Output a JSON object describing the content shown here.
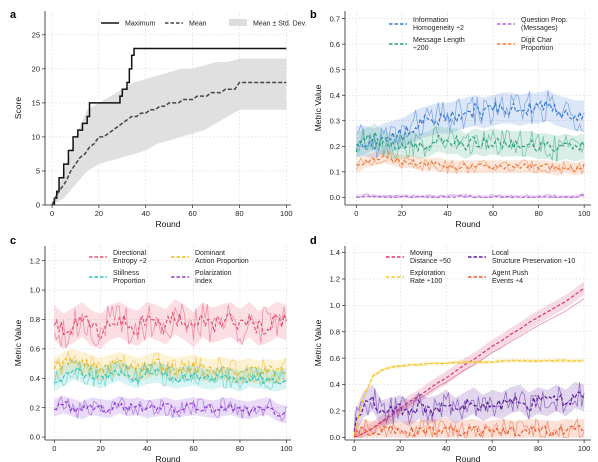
{
  "panels": [
    {
      "id": "a",
      "panel_label": "a",
      "chart_data": {
        "type": "line",
        "xlabel": "Round",
        "ylabel": "Score",
        "xlim": [
          -3,
          102
        ],
        "ylim": [
          0,
          28.5
        ],
        "xticks": [
          0,
          20,
          40,
          60,
          80,
          100
        ],
        "yticks": [
          0,
          5,
          10,
          15,
          20,
          25
        ],
        "grid": true,
        "legend_position": "top",
        "legend_columns": 3,
        "series": [
          {
            "name": "Maximum",
            "style": "solid",
            "color": "#111111",
            "x": [
              0,
              1,
              2,
              3,
              4,
              5,
              6,
              7,
              8,
              9,
              10,
              11,
              12,
              13,
              14,
              15,
              16,
              17,
              18,
              19,
              20,
              21,
              22,
              23,
              24,
              25,
              26,
              27,
              28,
              29,
              30,
              31,
              32,
              33,
              34,
              35,
              40,
              50,
              60,
              70,
              80,
              90,
              100
            ],
            "values": [
              0,
              1,
              2,
              4,
              4,
              6,
              6,
              8,
              8,
              10,
              10,
              11,
              11,
              12,
              12,
              13,
              15,
              15,
              15,
              15,
              15,
              15,
              15,
              15,
              15,
              15,
              15,
              15,
              15,
              16,
              17,
              17,
              18,
              20,
              22,
              23,
              23,
              23,
              23,
              23,
              23,
              23,
              23
            ]
          },
          {
            "name": "Mean",
            "style": "dashed",
            "color": "#444444",
            "x": [
              0,
              2,
              4,
              6,
              8,
              10,
              12,
              14,
              16,
              18,
              20,
              22,
              24,
              26,
              28,
              30,
              32,
              34,
              36,
              38,
              40,
              42,
              44,
              46,
              48,
              50,
              52,
              54,
              56,
              58,
              60,
              62,
              64,
              66,
              68,
              70,
              72,
              74,
              76,
              78,
              80,
              85,
              90,
              95,
              100
            ],
            "values": [
              0,
              1.5,
              2.5,
              3.5,
              5,
              6,
              7,
              7.5,
              8.5,
              9,
              10,
              10,
              10.5,
              11,
              11.5,
              12,
              12.5,
              13,
              13,
              13.5,
              13.5,
              14,
              14,
              14.5,
              14.5,
              15,
              15,
              15,
              15.5,
              15.5,
              15.5,
              16,
              16,
              16,
              16.5,
              16.5,
              16.5,
              17,
              17,
              17,
              18,
              18,
              18,
              18,
              18
            ]
          },
          {
            "name": "Mean ± Std. Dev.",
            "type": "band",
            "color": "#dddddd",
            "x": [
              0,
              5,
              10,
              15,
              20,
              25,
              30,
              35,
              40,
              45,
              50,
              55,
              60,
              65,
              70,
              75,
              80,
              85,
              90,
              95,
              100
            ],
            "low": [
              0,
              1,
              3,
              5,
              6,
              6.5,
              7,
              7.5,
              8,
              9,
              9.5,
              10,
              10.5,
              11,
              12,
              13,
              14,
              14,
              14,
              14,
              14
            ],
            "high": [
              0,
              5,
              10,
              14,
              15,
              16,
              17,
              18,
              18.5,
              19,
              19.5,
              20,
              20,
              20.5,
              21,
              21,
              21.5,
              21.5,
              21.5,
              21.5,
              21.5
            ]
          }
        ]
      }
    },
    {
      "id": "b",
      "panel_label": "b",
      "chart_data": {
        "type": "line",
        "xlabel": "Round",
        "ylabel": "Metric Value",
        "xlim": [
          -5,
          103
        ],
        "ylim": [
          -0.03,
          0.73
        ],
        "xticks": [
          0,
          20,
          40,
          60,
          80,
          100
        ],
        "yticks": [
          0.0,
          0.1,
          0.2,
          0.3,
          0.4,
          0.5,
          0.6,
          0.7
        ],
        "grid": true,
        "legend_position": "top",
        "series": [
          {
            "name": "Information Homogeneity ÷2",
            "color": "#3a78d6",
            "x0": 0,
            "step": 4,
            "values": [
              0.22,
              0.22,
              0.21,
              0.23,
              0.24,
              0.25,
              0.27,
              0.29,
              0.3,
              0.31,
              0.31,
              0.32,
              0.33,
              0.34,
              0.33,
              0.34,
              0.35,
              0.35,
              0.34,
              0.35,
              0.35,
              0.36,
              0.34,
              0.33,
              0.32,
              0.32
            ],
            "band": 0.06
          },
          {
            "name": "Question Prop. (Messages)",
            "color": "#b266d6",
            "x0": 0,
            "step": 4,
            "values": [
              0.0,
              0.005,
              0.0,
              0.0,
              0.0,
              0.003,
              0.0,
              0.0,
              0.0,
              0.0,
              0.0,
              0.0,
              0.005,
              0.0,
              0.0,
              0.0,
              0.0,
              0.0,
              0.0,
              0.0,
              0.0,
              0.0,
              0.0,
              0.0,
              0.0,
              0.01
            ],
            "band": 0.01
          },
          {
            "name": "Message Length ÷200",
            "color": "#2aa27a",
            "x0": 0,
            "step": 4,
            "values": [
              0.2,
              0.22,
              0.24,
              0.21,
              0.2,
              0.2,
              0.21,
              0.2,
              0.21,
              0.23,
              0.22,
              0.22,
              0.2,
              0.22,
              0.21,
              0.22,
              0.21,
              0.21,
              0.21,
              0.21,
              0.2,
              0.2,
              0.19,
              0.2,
              0.19,
              0.2
            ],
            "band": 0.05
          },
          {
            "name": "Digit Char Proportion",
            "color": "#ef7a3a",
            "x0": 0,
            "step": 4,
            "values": [
              0.12,
              0.14,
              0.15,
              0.16,
              0.15,
              0.14,
              0.14,
              0.13,
              0.13,
              0.13,
              0.12,
              0.12,
              0.12,
              0.12,
              0.12,
              0.12,
              0.12,
              0.12,
              0.12,
              0.12,
              0.12,
              0.12,
              0.11,
              0.12,
              0.11,
              0.12
            ],
            "band": 0.025
          }
        ]
      }
    },
    {
      "id": "c",
      "panel_label": "c",
      "chart_data": {
        "type": "line",
        "xlabel": "Round",
        "ylabel": "Metric Value",
        "xlim": [
          -4,
          102
        ],
        "ylim": [
          -0.02,
          1.3
        ],
        "xticks": [
          0,
          20,
          40,
          60,
          80,
          100
        ],
        "yticks": [
          0.0,
          0.2,
          0.4,
          0.6,
          0.8,
          1.0,
          1.2
        ],
        "grid": true,
        "legend_position": "top",
        "series": [
          {
            "name": "Directional Entropy ÷2",
            "color": "#e8506e",
            "x0": 0,
            "step": 4,
            "values": [
              0.78,
              0.72,
              0.76,
              0.8,
              0.74,
              0.72,
              0.78,
              0.8,
              0.76,
              0.74,
              0.8,
              0.78,
              0.75,
              0.82,
              0.78,
              0.73,
              0.8,
              0.76,
              0.78,
              0.8,
              0.75,
              0.8,
              0.74,
              0.76,
              0.8,
              0.78
            ],
            "band": 0.12
          },
          {
            "name": "Dominant Action Proportion",
            "color": "#f0b81e",
            "x0": 0,
            "step": 4,
            "values": [
              0.46,
              0.5,
              0.52,
              0.5,
              0.48,
              0.46,
              0.48,
              0.5,
              0.48,
              0.46,
              0.48,
              0.5,
              0.48,
              0.46,
              0.47,
              0.48,
              0.46,
              0.45,
              0.47,
              0.45,
              0.44,
              0.46,
              0.44,
              0.45,
              0.44,
              0.46
            ],
            "band": 0.08
          },
          {
            "name": "Stillness Proportion",
            "color": "#2ec4c0",
            "x0": 0,
            "step": 4,
            "values": [
              0.38,
              0.42,
              0.46,
              0.44,
              0.42,
              0.4,
              0.43,
              0.45,
              0.42,
              0.4,
              0.43,
              0.44,
              0.42,
              0.4,
              0.41,
              0.42,
              0.4,
              0.39,
              0.41,
              0.4,
              0.38,
              0.41,
              0.4,
              0.39,
              0.38,
              0.4
            ],
            "band": 0.07
          },
          {
            "name": "Polarization Index",
            "color": "#8b3ad6",
            "x0": 0,
            "step": 4,
            "values": [
              0.2,
              0.22,
              0.2,
              0.18,
              0.21,
              0.2,
              0.19,
              0.22,
              0.2,
              0.21,
              0.19,
              0.2,
              0.21,
              0.19,
              0.2,
              0.21,
              0.2,
              0.19,
              0.2,
              0.21,
              0.19,
              0.18,
              0.2,
              0.21,
              0.17,
              0.15
            ],
            "band": 0.06
          }
        ]
      }
    },
    {
      "id": "d",
      "panel_label": "d",
      "chart_data": {
        "type": "line",
        "xlabel": "Round",
        "ylabel": "Metric Value",
        "xlim": [
          -4,
          103
        ],
        "ylim": [
          -0.02,
          1.45
        ],
        "xticks": [
          0,
          20,
          40,
          60,
          80,
          100
        ],
        "yticks": [
          0.0,
          0.2,
          0.4,
          0.6,
          0.8,
          1.0,
          1.2,
          1.4
        ],
        "grid": true,
        "legend_position": "top",
        "series": [
          {
            "name": "Moving Distance ÷50",
            "color": "#d9336b",
            "x0": 0,
            "step": 4,
            "values": [
              0.0,
              0.03,
              0.07,
              0.12,
              0.17,
              0.22,
              0.27,
              0.31,
              0.36,
              0.41,
              0.45,
              0.5,
              0.55,
              0.59,
              0.64,
              0.69,
              0.73,
              0.78,
              0.82,
              0.87,
              0.91,
              0.95,
              0.99,
              1.03,
              1.08,
              1.13
            ],
            "band": 0.05
          },
          {
            "name": "Local Structure Preservation ÷10",
            "color": "#5a1a9e",
            "x0": 0,
            "step": 4,
            "values": [
              0.08,
              0.25,
              0.3,
              0.18,
              0.2,
              0.22,
              0.18,
              0.24,
              0.2,
              0.22,
              0.26,
              0.2,
              0.24,
              0.28,
              0.22,
              0.26,
              0.24,
              0.28,
              0.3,
              0.24,
              0.28,
              0.26,
              0.3,
              0.26,
              0.32,
              0.3
            ],
            "band": 0.1
          },
          {
            "name": "Exploration Rate ÷100",
            "color": "#f2c52a",
            "x0": 0,
            "step": 4,
            "values": [
              0.02,
              0.3,
              0.46,
              0.51,
              0.53,
              0.54,
              0.55,
              0.55,
              0.56,
              0.56,
              0.56,
              0.57,
              0.57,
              0.57,
              0.57,
              0.57,
              0.58,
              0.58,
              0.58,
              0.58,
              0.58,
              0.58,
              0.58,
              0.58,
              0.58,
              0.58
            ],
            "band": 0.015
          },
          {
            "name": "Agent Push Events ÷4",
            "color": "#f05a28",
            "x0": 0,
            "step": 4,
            "values": [
              0.0,
              0.06,
              0.04,
              0.05,
              0.06,
              0.03,
              0.05,
              0.04,
              0.06,
              0.05,
              0.07,
              0.04,
              0.05,
              0.06,
              0.04,
              0.05,
              0.06,
              0.05,
              0.04,
              0.06,
              0.05,
              0.05,
              0.04,
              0.06,
              0.05,
              0.06
            ],
            "band": 0.08
          }
        ]
      }
    }
  ]
}
